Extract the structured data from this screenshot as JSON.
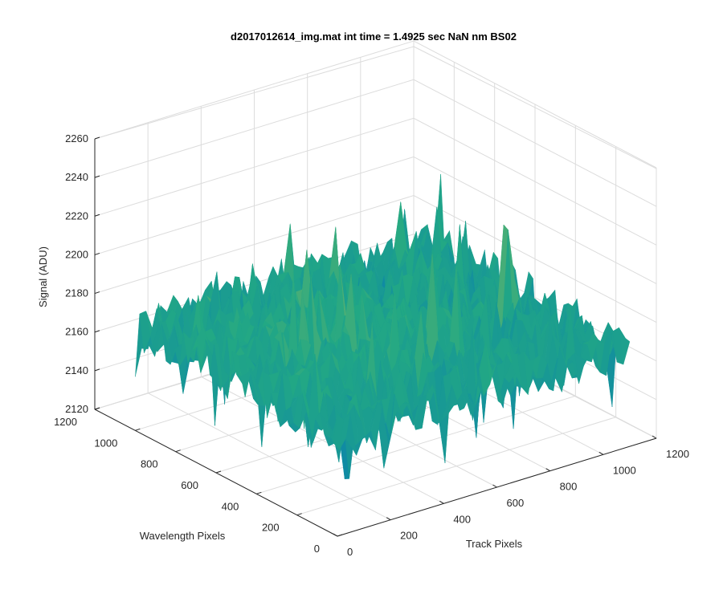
{
  "chart_data": {
    "type": "surface",
    "title": "d2017012614_img.mat int time = 1.4925 sec  NaN nm BS02",
    "xlabel": "Track Pixels",
    "ylabel": "Wavelength Pixels",
    "zlabel": "Signal (ADU)",
    "xlim": [
      0,
      1200
    ],
    "ylim": [
      0,
      1200
    ],
    "zlim": [
      2120,
      2260
    ],
    "xticks": [
      "0",
      "200",
      "400",
      "600",
      "800",
      "1000",
      "1200"
    ],
    "yticks": [
      "0",
      "200",
      "400",
      "600",
      "800",
      "1000",
      "1200"
    ],
    "zticks": [
      "2120",
      "2140",
      "2160",
      "2180",
      "2200",
      "2220",
      "2240",
      "2260"
    ],
    "grid": true,
    "colormap": "parula",
    "surface_mean": 2170,
    "surface_min": 2125,
    "surface_max": 2240,
    "colors": {
      "low": "#0072bd",
      "mid": "#22a884",
      "high": "#edc63f"
    }
  }
}
